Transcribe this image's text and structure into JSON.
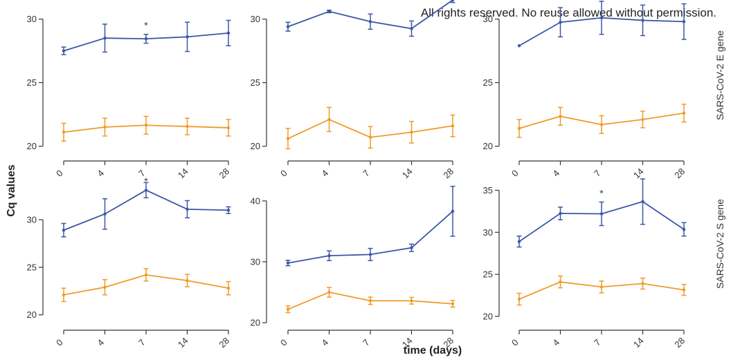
{
  "notice": "All rights reserved. No reuse allowed without permission.",
  "y_axis_title": "Cq values",
  "x_axis_title": "time (days)",
  "row_labels": [
    "SARS-CoV-2 E gene",
    "SARS-CoV-2 S gene"
  ],
  "colors": {
    "blue": "#3a56a5",
    "orange": "#f09a28",
    "axis": "#333333"
  },
  "chart_data": [
    {
      "type": "line",
      "panel": "row1-col1",
      "categories": [
        "0",
        "4",
        "7",
        "14",
        "28"
      ],
      "ylim": [
        19,
        31.5
      ],
      "yticks": [
        20,
        25,
        30
      ],
      "series": [
        {
          "color": "blue",
          "values": [
            27.5,
            28.5,
            28.45,
            28.6,
            28.9
          ],
          "errors": [
            0.3,
            1.1,
            0.35,
            1.15,
            1.0
          ]
        },
        {
          "color": "orange",
          "values": [
            21.1,
            21.5,
            21.65,
            21.55,
            21.45
          ],
          "errors": [
            0.7,
            0.7,
            0.7,
            0.65,
            0.65
          ]
        }
      ],
      "annotations": [
        {
          "x": "7",
          "text": "*"
        }
      ]
    },
    {
      "type": "line",
      "panel": "row1-col2",
      "categories": [
        "0",
        "4",
        "7",
        "14",
        "28"
      ],
      "ylim": [
        19,
        31.5
      ],
      "yticks": [
        20,
        25,
        30
      ],
      "series": [
        {
          "color": "blue",
          "values": [
            29.4,
            30.6,
            29.8,
            29.25,
            31.5
          ],
          "errors": [
            0.35,
            0.1,
            0.6,
            0.6,
            0.2
          ]
        },
        {
          "color": "orange",
          "values": [
            20.6,
            22.1,
            20.7,
            21.1,
            21.6
          ],
          "errors": [
            0.8,
            0.95,
            0.85,
            0.85,
            0.85
          ]
        }
      ],
      "annotations": []
    },
    {
      "type": "line",
      "panel": "row1-col3",
      "categories": [
        "0",
        "4",
        "7",
        "14",
        "28"
      ],
      "ylim": [
        19,
        31.5
      ],
      "yticks": [
        20,
        25,
        30
      ],
      "series": [
        {
          "color": "blue",
          "values": [
            27.9,
            29.75,
            30.1,
            29.9,
            29.8
          ],
          "errors": [
            0,
            1.15,
            1.3,
            1.2,
            1.4
          ]
        },
        {
          "color": "orange",
          "values": [
            21.4,
            22.35,
            21.7,
            22.1,
            22.6
          ],
          "errors": [
            0.7,
            0.7,
            0.7,
            0.65,
            0.7
          ]
        }
      ],
      "annotations": []
    },
    {
      "type": "line",
      "panel": "row2-col1",
      "categories": [
        "0",
        "4",
        "7",
        "14",
        "28"
      ],
      "ylim": [
        18.6,
        35.3
      ],
      "yticks": [
        20,
        25,
        30
      ],
      "series": [
        {
          "color": "blue",
          "values": [
            28.9,
            30.6,
            33.1,
            31.1,
            31.0
          ],
          "errors": [
            0.7,
            1.6,
            0.8,
            0.9,
            0.35
          ]
        },
        {
          "color": "orange",
          "values": [
            22.1,
            22.9,
            24.2,
            23.6,
            22.8
          ],
          "errors": [
            0.7,
            0.8,
            0.65,
            0.65,
            0.7
          ]
        }
      ],
      "annotations": [
        {
          "x": "7",
          "text": "*"
        }
      ]
    },
    {
      "type": "line",
      "panel": "row2-col2",
      "categories": [
        "0",
        "4",
        "7",
        "14",
        "28"
      ],
      "ylim": [
        19.1,
        45.2
      ],
      "yticks": [
        20,
        30,
        40
      ],
      "series": [
        {
          "color": "blue",
          "values": [
            29.8,
            31.0,
            31.2,
            32.3,
            38.3
          ],
          "errors": [
            0.45,
            0.8,
            1.0,
            0.6,
            4.1
          ]
        },
        {
          "color": "orange",
          "values": [
            22.2,
            25.0,
            23.6,
            23.6,
            23.1
          ],
          "errors": [
            0.55,
            0.8,
            0.6,
            0.55,
            0.55
          ]
        }
      ],
      "annotations": []
    },
    {
      "type": "line",
      "panel": "row2-col3",
      "categories": [
        "0",
        "4",
        "7",
        "14",
        "28"
      ],
      "ylim": [
        18.6,
        37.5
      ],
      "yticks": [
        20,
        25,
        30,
        35
      ],
      "series": [
        {
          "color": "blue",
          "values": [
            28.9,
            32.25,
            32.2,
            33.65,
            30.35
          ],
          "errors": [
            0.65,
            0.75,
            1.4,
            2.7,
            0.8
          ]
        },
        {
          "color": "orange",
          "values": [
            22.05,
            24.1,
            23.5,
            23.9,
            23.15
          ],
          "errors": [
            0.7,
            0.7,
            0.7,
            0.65,
            0.65
          ]
        }
      ],
      "annotations": [
        {
          "x": "7",
          "text": "*"
        }
      ]
    }
  ]
}
